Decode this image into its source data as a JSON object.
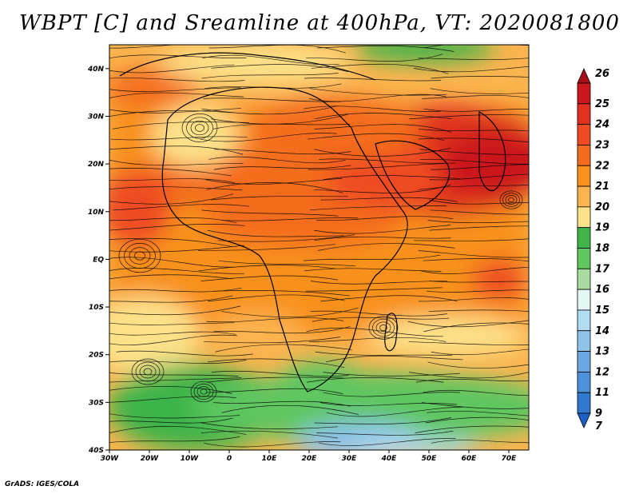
{
  "title": "WBPT [C] and Sreamline at 400hPa, VT: 2020081800",
  "credit": "GrADS: IGES/COLA",
  "map": {
    "lon_range": [
      -30,
      75
    ],
    "lat_range": [
      -40,
      45
    ],
    "lat_ticks": [
      {
        "value": 40,
        "label": "40N"
      },
      {
        "value": 30,
        "label": "30N"
      },
      {
        "value": 20,
        "label": "20N"
      },
      {
        "value": 10,
        "label": "10N"
      },
      {
        "value": 0,
        "label": "EQ"
      },
      {
        "value": -10,
        "label": "10S"
      },
      {
        "value": -20,
        "label": "20S"
      },
      {
        "value": -30,
        "label": "30S"
      },
      {
        "value": -40,
        "label": "40S"
      }
    ],
    "lon_ticks": [
      {
        "value": -30,
        "label": "30W"
      },
      {
        "value": -20,
        "label": "20W"
      },
      {
        "value": -10,
        "label": "10W"
      },
      {
        "value": 0,
        "label": "0"
      },
      {
        "value": 10,
        "label": "10E"
      },
      {
        "value": 20,
        "label": "20E"
      },
      {
        "value": 30,
        "label": "30E"
      },
      {
        "value": 40,
        "label": "40E"
      },
      {
        "value": 50,
        "label": "50E"
      },
      {
        "value": 60,
        "label": "60E"
      },
      {
        "value": 70,
        "label": "70E"
      }
    ]
  },
  "colorbar": {
    "levels": [
      {
        "label": "26",
        "color": "#a50f15"
      },
      {
        "label": "25",
        "color": "#cb181d"
      },
      {
        "label": "24",
        "color": "#e0301e"
      },
      {
        "label": "23",
        "color": "#ef4b22"
      },
      {
        "label": "22",
        "color": "#f46d1f"
      },
      {
        "label": "21",
        "color": "#f8911e"
      },
      {
        "label": "20",
        "color": "#fbb44f"
      },
      {
        "label": "19",
        "color": "#fde28a"
      },
      {
        "label": "18",
        "color": "#3eb44a"
      },
      {
        "label": "17",
        "color": "#5fc660"
      },
      {
        "label": "16",
        "color": "#a7dea0"
      },
      {
        "label": "15",
        "color": "#e4f7f5"
      },
      {
        "label": "14",
        "color": "#b2dcf2"
      },
      {
        "label": "13",
        "color": "#8ec3ea"
      },
      {
        "label": "12",
        "color": "#6aa9e1"
      },
      {
        "label": "11",
        "color": "#4d91d8"
      },
      {
        "label": "9",
        "color": "#3179cf"
      },
      {
        "label": "7",
        "color": "#1e5fc4"
      }
    ]
  }
}
